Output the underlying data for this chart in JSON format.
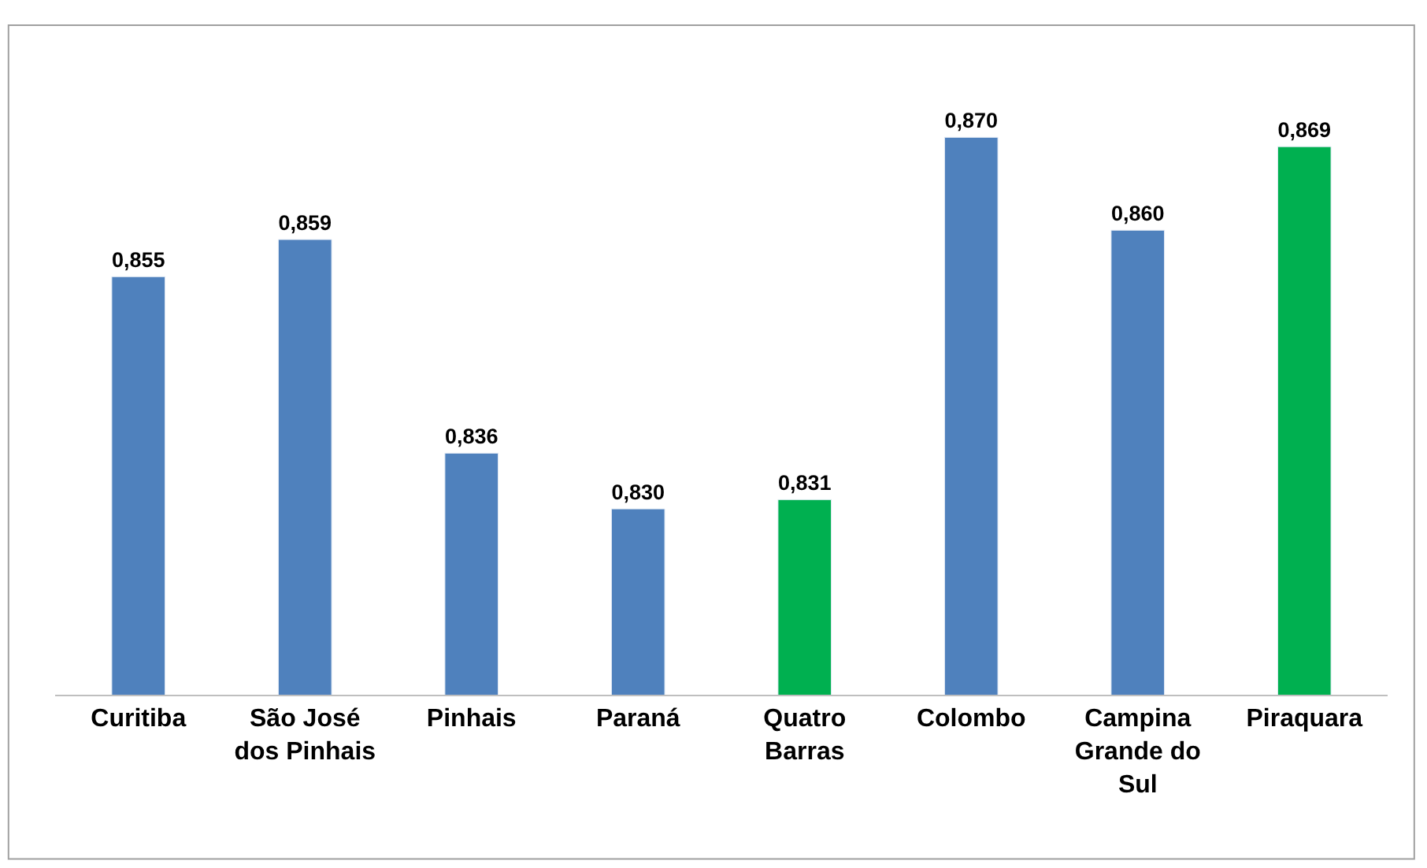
{
  "chart_data": {
    "type": "bar",
    "categories": [
      "Curitiba",
      "São José dos Pinhais",
      "Pinhais",
      "Paraná",
      "Quatro Barras",
      "Colombo",
      "Campina Grande do Sul",
      "Piraquara"
    ],
    "values": [
      0.855,
      0.859,
      0.836,
      0.83,
      0.831,
      0.87,
      0.86,
      0.869
    ],
    "colors": [
      "#4f81bd",
      "#4f81bd",
      "#4f81bd",
      "#4f81bd",
      "#00b050",
      "#4f81bd",
      "#4f81bd",
      "#00b050"
    ],
    "value_labels": [
      "0,855",
      "0,859",
      "0,836",
      "0,830",
      "0,831",
      "0,870",
      "0,860",
      "0,869"
    ],
    "tick_labels": "x",
    "legend": false
  }
}
